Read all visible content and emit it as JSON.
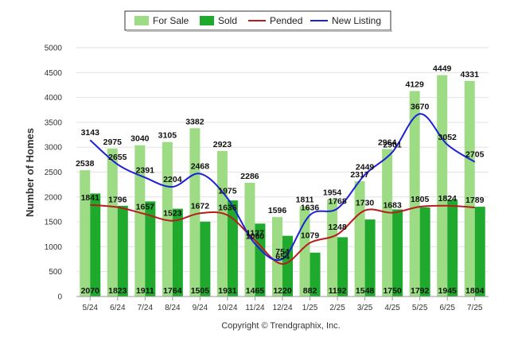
{
  "chart_data": {
    "type": "bar",
    "categories": [
      "5/24",
      "6/24",
      "7/24",
      "8/24",
      "9/24",
      "10/24",
      "11/24",
      "12/24",
      "1/25",
      "2/25",
      "3/25",
      "4/25",
      "5/25",
      "6/25",
      "7/25"
    ],
    "series": [
      {
        "name": "For Sale",
        "kind": "bar",
        "color": "#9ddc84",
        "values": [
          2538,
          2975,
          3040,
          3105,
          3382,
          2923,
          2286,
          1596,
          1811,
          1954,
          2317,
          2964,
          4129,
          4449,
          4331
        ]
      },
      {
        "name": "Sold",
        "kind": "bar",
        "color": "#1faa2e",
        "values": [
          2070,
          1823,
          1911,
          1764,
          1505,
          1931,
          1465,
          1220,
          882,
          1192,
          1548,
          1750,
          1792,
          1945,
          1804
        ]
      },
      {
        "name": "Pended",
        "kind": "line",
        "color": "#b81c1c",
        "values": [
          1841,
          1796,
          1657,
          1523,
          1672,
          1636,
          1127,
          654,
          1079,
          1248,
          1730,
          1683,
          1805,
          1824,
          1789
        ]
      },
      {
        "name": "New Listing",
        "kind": "line",
        "color": "#1d20d8",
        "values": [
          3143,
          2655,
          2391,
          2204,
          2468,
          1975,
          1060,
          754,
          1636,
          1768,
          2449,
          2901,
          3670,
          3052,
          2705
        ]
      }
    ],
    "ylabel": "Number of Homes",
    "ylim": [
      0,
      5000
    ],
    "yticks": [
      0,
      500,
      1000,
      1500,
      2000,
      2500,
      3000,
      3500,
      4000,
      4500,
      5000
    ],
    "grid": true,
    "legend_position": "top-center",
    "credit": "Copyright © Trendgraphix, Inc."
  }
}
